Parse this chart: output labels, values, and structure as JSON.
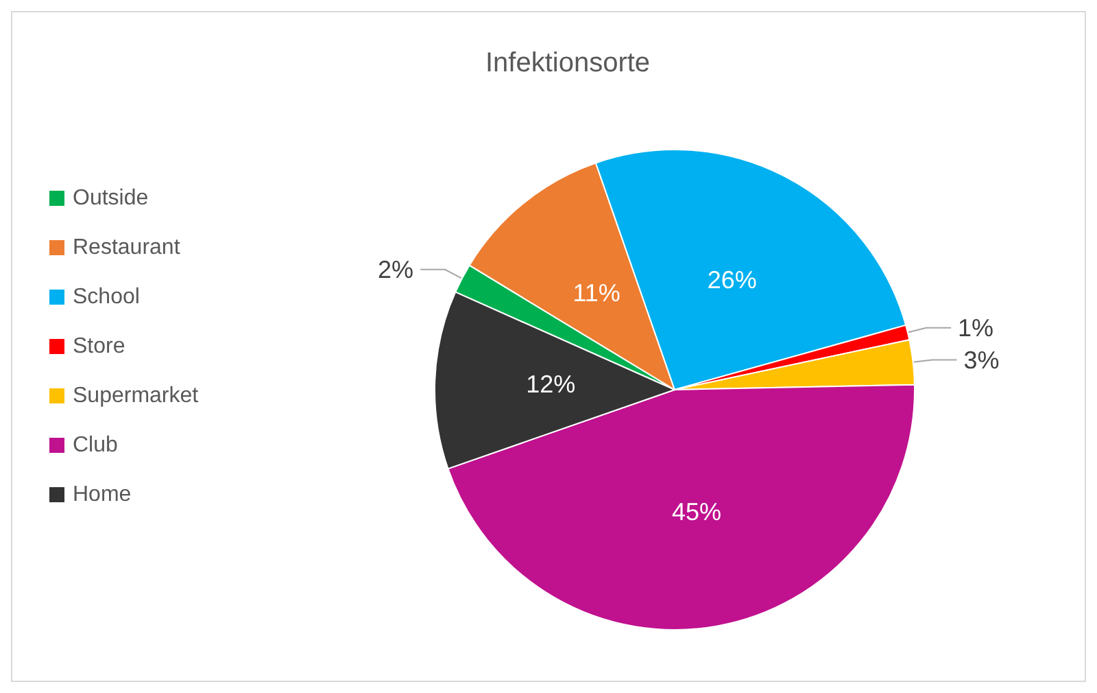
{
  "chart_data": {
    "type": "pie",
    "title": "Infektionsorte",
    "categories": [
      "Outside",
      "Restaurant",
      "School",
      "Store",
      "Supermarket",
      "Club",
      "Home"
    ],
    "values": [
      2,
      11,
      26,
      1,
      3,
      45,
      12
    ],
    "colors": [
      "#00b050",
      "#ed7d31",
      "#00b0f0",
      "#ff0000",
      "#ffc000",
      "#c0118f",
      "#333333"
    ],
    "value_labels": [
      "2%",
      "11%",
      "26%",
      "1%",
      "3%",
      "45%",
      "12%"
    ],
    "legend": "left"
  }
}
